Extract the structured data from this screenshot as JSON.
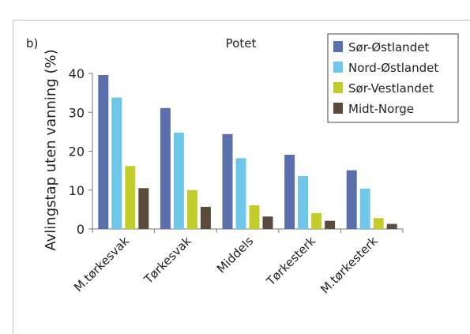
{
  "panel_label": "b)",
  "chart_data": {
    "type": "bar",
    "title": "Potet",
    "ylabel": "Avlingstap uten vanning (%)",
    "xlabel": "",
    "ylim": [
      0,
      40
    ],
    "yticks": [
      0,
      10,
      20,
      30,
      40
    ],
    "grid": false,
    "legend_position": "top-right",
    "categories": [
      "M.tørkesvak",
      "Tørkesvak",
      "Middels",
      "Tørkesterk",
      "M.tørkesterk"
    ],
    "series": [
      {
        "name": "Sør-Østlandet",
        "color": "#5b6fad",
        "values": [
          39.6,
          31.1,
          24.4,
          19.1,
          15.1
        ]
      },
      {
        "name": "Nord-Østlandet",
        "color": "#6ec6e8",
        "values": [
          33.8,
          24.8,
          18.2,
          13.6,
          10.4
        ]
      },
      {
        "name": "Sør-Vestlandet",
        "color": "#c2cc2a",
        "values": [
          16.2,
          10.0,
          6.1,
          4.1,
          2.8
        ]
      },
      {
        "name": "Midt-Norge",
        "color": "#5a4a3a",
        "values": [
          10.5,
          5.7,
          3.2,
          2.1,
          1.3
        ]
      }
    ]
  }
}
